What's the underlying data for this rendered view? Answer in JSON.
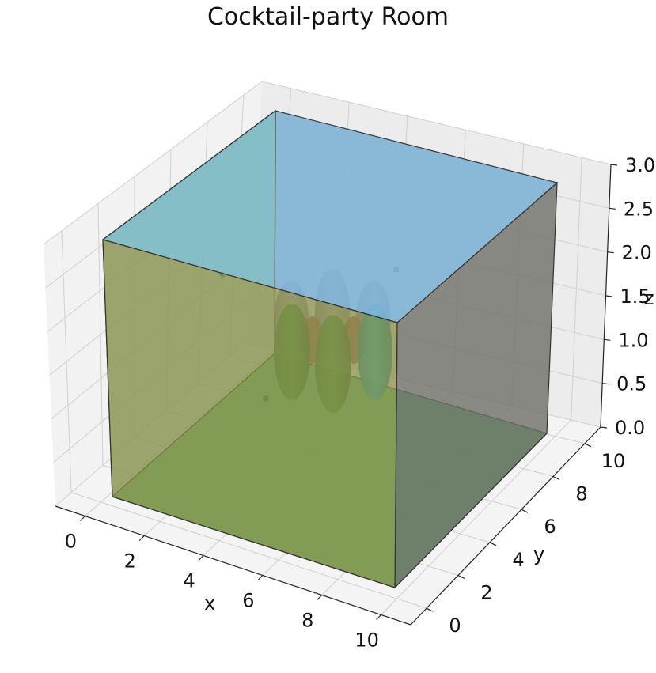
{
  "chart_data": {
    "type": "3d-scene",
    "title": "Cocktail-party Room",
    "xlabel": "x",
    "ylabel": "y",
    "zlabel": "z",
    "xlim": [
      -1,
      11
    ],
    "ylim": [
      -1,
      11
    ],
    "zlim": [
      0,
      3
    ],
    "x_ticks": [
      "0",
      "2",
      "4",
      "6",
      "8",
      "10"
    ],
    "y_ticks": [
      "0",
      "2",
      "4",
      "6",
      "8",
      "10"
    ],
    "z_ticks": [
      "0.0",
      "0.5",
      "1.0",
      "1.5",
      "2.0",
      "2.5",
      "3.0"
    ],
    "grid": true,
    "room": {
      "x": [
        0,
        10
      ],
      "y": [
        0,
        10
      ],
      "z": [
        0,
        3
      ]
    },
    "colors": {
      "floor": "#3cb14a",
      "ceiling": "#7fb3d5",
      "wall_front": "#8c8f4a",
      "wall_left": "#7fc9a8",
      "wall_right": "#7a7a72",
      "pane_light": "#f2f2f2",
      "pane_mid": "#ececec",
      "pane_dark": "#e6e6e6"
    }
  }
}
